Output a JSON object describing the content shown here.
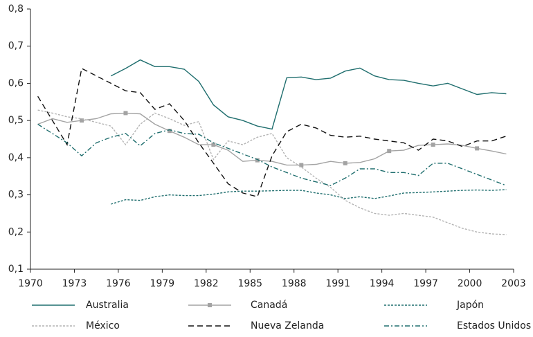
{
  "chart_data": {
    "type": "line",
    "xlim": [
      1970,
      2003
    ],
    "xticks": [
      1970,
      1973,
      1976,
      1979,
      1982,
      1985,
      1988,
      1991,
      1994,
      1997,
      2000,
      2003
    ],
    "ylim": [
      0.1,
      0.8
    ],
    "yticks": [
      {
        "value": 0.1,
        "label": "0,1"
      },
      {
        "value": 0.2,
        "label": "0,2"
      },
      {
        "value": 0.3,
        "label": "0,3"
      },
      {
        "value": 0.4,
        "label": "0,4"
      },
      {
        "value": 0.5,
        "label": "0,5"
      },
      {
        "value": 0.6,
        "label": "0,6"
      },
      {
        "value": 0.7,
        "label": "0,7"
      },
      {
        "value": 0.8,
        "label": "0,8"
      }
    ],
    "grid": false,
    "legend": "bottom",
    "series": [
      {
        "name": "Australia",
        "color": "#1f6e6e",
        "dash": "none",
        "x": [
          1975.5,
          1976.5,
          1977.5,
          1978.5,
          1979.5,
          1980.5,
          1981.5,
          1982.5,
          1983.5,
          1984.5,
          1985.5,
          1986.5,
          1987.5,
          1988.5,
          1989.5,
          1990.5,
          1991.5,
          1992.5,
          1993.5,
          1994.5,
          1995.5,
          1996.5,
          1997.5,
          1998.5,
          1999.5,
          2000.5,
          2001.5,
          2002.5
        ],
        "values": [
          0.62,
          0.64,
          0.663,
          0.645,
          0.645,
          0.638,
          0.605,
          0.542,
          0.51,
          0.5,
          0.485,
          0.477,
          0.615,
          0.617,
          0.61,
          0.614,
          0.633,
          0.641,
          0.62,
          0.61,
          0.608,
          0.6,
          0.593,
          0.6,
          0.585,
          0.57,
          0.575,
          0.572
        ]
      },
      {
        "name": "Canadá",
        "color": "#a3a3a3",
        "dash": "none",
        "marker": "square",
        "x": [
          1970.5,
          1971.5,
          1972.5,
          1973.5,
          1974.5,
          1975.5,
          1976.5,
          1977.5,
          1978.5,
          1979.5,
          1980.5,
          1981.5,
          1982.5,
          1983.5,
          1984.5,
          1985.5,
          1986.5,
          1987.5,
          1988.5,
          1989.5,
          1990.5,
          1991.5,
          1992.5,
          1993.5,
          1994.5,
          1995.5,
          1996.5,
          1997.5,
          1998.5,
          1999.5,
          2000.5,
          2001.5,
          2002.5
        ],
        "values": [
          0.49,
          0.505,
          0.495,
          0.5,
          0.505,
          0.518,
          0.52,
          0.518,
          0.49,
          0.472,
          0.455,
          0.435,
          0.435,
          0.42,
          0.39,
          0.393,
          0.39,
          0.38,
          0.38,
          0.382,
          0.39,
          0.385,
          0.387,
          0.397,
          0.418,
          0.42,
          0.433,
          0.435,
          0.437,
          0.433,
          0.425,
          0.418,
          0.41
        ]
      },
      {
        "name": "Japón",
        "color": "#1f6e6e",
        "dash": "3,2",
        "x": [
          1975.5,
          1976.5,
          1977.5,
          1978.5,
          1979.5,
          1980.5,
          1981.5,
          1982.5,
          1983.5,
          1984.5,
          1985.5,
          1986.5,
          1987.5,
          1988.5,
          1989.5,
          1990.5,
          1991.5,
          1992.5,
          1993.5,
          1994.5,
          1995.5,
          1996.5,
          1997.5,
          1998.5,
          1999.5,
          2000.5,
          2001.5,
          2002.5
        ],
        "values": [
          0.275,
          0.287,
          0.285,
          0.295,
          0.3,
          0.298,
          0.298,
          0.302,
          0.308,
          0.31,
          0.31,
          0.311,
          0.312,
          0.312,
          0.305,
          0.3,
          0.29,
          0.295,
          0.29,
          0.297,
          0.305,
          0.306,
          0.308,
          0.31,
          0.312,
          0.313,
          0.312,
          0.314
        ]
      },
      {
        "name": "México",
        "color": "#b3b3b3",
        "dash": "3,2",
        "x": [
          1970.5,
          1971.5,
          1972.5,
          1973.5,
          1974.5,
          1975.5,
          1976.5,
          1977.5,
          1978.5,
          1979.5,
          1980.5,
          1981.5,
          1982.5,
          1983.5,
          1984.5,
          1985.5,
          1986.5,
          1987.5,
          1988.5,
          1989.5,
          1990.5,
          1991.5,
          1992.5,
          1993.5,
          1994.5,
          1995.5,
          1996.5,
          1997.5,
          1998.5,
          1999.5,
          2000.5,
          2001.5,
          2002.5
        ],
        "values": [
          0.528,
          0.52,
          0.51,
          0.505,
          0.495,
          0.485,
          0.435,
          0.49,
          0.52,
          0.505,
          0.487,
          0.497,
          0.395,
          0.445,
          0.435,
          0.455,
          0.465,
          0.4,
          0.375,
          0.345,
          0.32,
          0.285,
          0.265,
          0.25,
          0.245,
          0.25,
          0.245,
          0.24,
          0.225,
          0.21,
          0.2,
          0.195,
          0.193
        ]
      },
      {
        "name": "Nueva Zelanda",
        "color": "#111111",
        "dash": "8,5",
        "x": [
          1970.5,
          1971.5,
          1972.5,
          1973.5,
          1974.5,
          1975.5,
          1976.5,
          1977.5,
          1978.5,
          1979.5,
          1980.5,
          1981.5,
          1982.5,
          1983.5,
          1984.5,
          1985.5,
          1986.5,
          1987.5,
          1988.5,
          1989.5,
          1990.5,
          1991.5,
          1992.5,
          1993.5,
          1994.5,
          1995.5,
          1996.5,
          1997.5,
          1998.5,
          1999.5,
          2000.5,
          2001.5,
          2002.5
        ],
        "values": [
          0.565,
          0.5,
          0.435,
          0.64,
          0.62,
          0.6,
          0.58,
          0.575,
          0.53,
          0.545,
          0.5,
          0.44,
          0.385,
          0.33,
          0.305,
          0.295,
          0.405,
          0.47,
          0.49,
          0.48,
          0.46,
          0.455,
          0.458,
          0.45,
          0.445,
          0.44,
          0.42,
          0.45,
          0.445,
          0.43,
          0.445,
          0.445,
          0.458
        ]
      },
      {
        "name": "Estados Unidos",
        "color": "#1f6e6e",
        "dash": "7,3,2,3",
        "x": [
          1970.5,
          1971.5,
          1972.5,
          1973.5,
          1974.5,
          1975.5,
          1976.5,
          1977.5,
          1978.5,
          1979.5,
          1980.5,
          1981.5,
          1982.5,
          1983.5,
          1984.5,
          1985.5,
          1986.5,
          1987.5,
          1988.5,
          1989.5,
          1990.5,
          1991.5,
          1992.5,
          1993.5,
          1994.5,
          1995.5,
          1996.5,
          1997.5,
          1998.5,
          1999.5,
          2000.5,
          2001.5,
          2002.5
        ],
        "values": [
          0.49,
          0.465,
          0.44,
          0.405,
          0.44,
          0.455,
          0.465,
          0.432,
          0.465,
          0.475,
          0.465,
          0.463,
          0.44,
          0.425,
          0.41,
          0.395,
          0.375,
          0.36,
          0.345,
          0.335,
          0.325,
          0.345,
          0.37,
          0.37,
          0.36,
          0.36,
          0.352,
          0.385,
          0.385,
          0.37,
          0.355,
          0.34,
          0.325
        ]
      }
    ]
  }
}
